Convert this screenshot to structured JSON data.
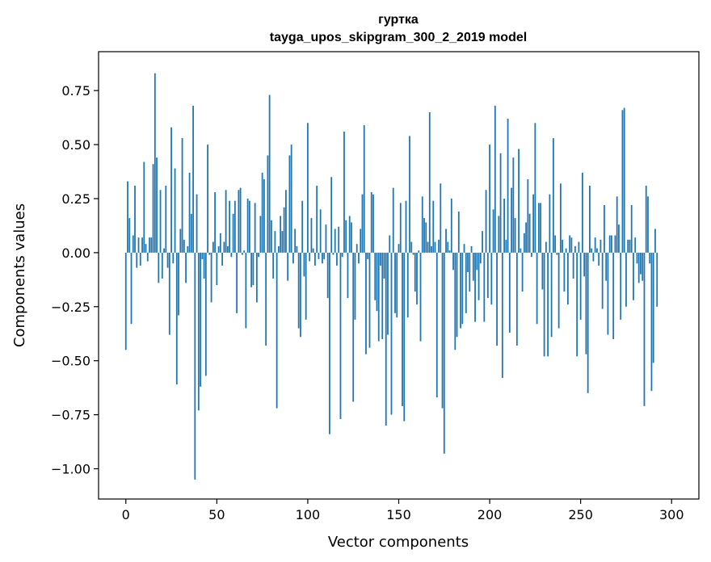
{
  "chart_data": {
    "type": "bar",
    "title": [
      "гуртка",
      "tayga_upos_skipgram_300_2_2019 model"
    ],
    "xlabel": "Vector components",
    "ylabel": "Components values",
    "xlim": [
      -15,
      315
    ],
    "ylim": [
      -1.14,
      0.93
    ],
    "xticks": [
      0,
      50,
      100,
      150,
      200,
      250,
      300
    ],
    "xtick_labels": [
      "0",
      "50",
      "100",
      "150",
      "200",
      "250",
      "300"
    ],
    "yticks": [
      -1.0,
      -0.75,
      -0.5,
      -0.25,
      0.0,
      0.25,
      0.5,
      0.75
    ],
    "ytick_labels": [
      "−1.00",
      "−0.75",
      "−0.50",
      "−0.25",
      "0.00",
      "0.25",
      "0.50",
      "0.75"
    ],
    "grid": false,
    "bar_color": "#1f77b4",
    "values": [
      -0.45,
      0.33,
      0.16,
      -0.33,
      0.08,
      0.31,
      -0.07,
      0.07,
      -0.06,
      0.07,
      0.42,
      0.04,
      -0.04,
      0.07,
      0.07,
      0.41,
      0.83,
      0.44,
      -0.14,
      0.29,
      -0.12,
      0.02,
      0.31,
      -0.07,
      -0.38,
      0.58,
      -0.05,
      0.39,
      -0.61,
      -0.29,
      0.11,
      0.53,
      0.06,
      -0.14,
      0.03,
      0.37,
      0.18,
      0.68,
      -1.05,
      0.27,
      -0.73,
      -0.62,
      -0.03,
      -0.12,
      -0.57,
      0.5,
      -0.01,
      -0.23,
      0.05,
      0.28,
      -0.15,
      0.03,
      0.09,
      -0.06,
      0.05,
      0.29,
      0.03,
      0.24,
      -0.02,
      0.18,
      0.24,
      -0.28,
      0.29,
      0.3,
      -0.01,
      0.01,
      -0.35,
      0.25,
      0.24,
      -0.16,
      -0.15,
      0.23,
      -0.23,
      -0.02,
      0.17,
      0.37,
      0.34,
      -0.43,
      0.45,
      0.73,
      0.15,
      -0.12,
      0.1,
      -0.72,
      0.03,
      0.17,
      0.1,
      0.21,
      0.29,
      -0.13,
      0.45,
      0.5,
      -0.05,
      0.11,
      0.03,
      -0.35,
      -0.39,
      0.24,
      -0.11,
      -0.31,
      0.6,
      -0.04,
      0.16,
      0.02,
      -0.06,
      0.31,
      -0.03,
      0.2,
      -0.05,
      -0.03,
      0.13,
      -0.21,
      -0.84,
      0.35,
      -0.01,
      0.11,
      -0.06,
      0.12,
      -0.77,
      -0.02,
      0.56,
      0.15,
      -0.21,
      0.17,
      0.14,
      -0.69,
      -0.31,
      0.04,
      -0.05,
      0.11,
      0.27,
      0.59,
      -0.47,
      -0.03,
      -0.44,
      0.28,
      0.27,
      -0.22,
      -0.27,
      -0.41,
      -0.06,
      -0.4,
      -0.12,
      -0.8,
      -0.38,
      0.08,
      -0.75,
      0.3,
      -0.28,
      -0.3,
      0.04,
      0.23,
      -0.71,
      -0.78,
      0.24,
      -0.3,
      0.54,
      0.05,
      -0.01,
      -0.18,
      -0.24,
      0.01,
      -0.41,
      0.26,
      0.16,
      0.14,
      0.05,
      0.65,
      0.03,
      0.24,
      0.05,
      -0.67,
      0.06,
      0.32,
      -0.72,
      -0.93,
      0.11,
      0.05,
      0.01,
      0.25,
      -0.08,
      -0.45,
      -0.39,
      0.19,
      -0.35,
      -0.33,
      0.04,
      -0.28,
      -0.09,
      -0.18,
      0.03,
      -0.13,
      -0.32,
      -0.08,
      -0.22,
      -0.05,
      0.1,
      -0.32,
      0.29,
      -0.21,
      0.5,
      -0.24,
      0.2,
      0.68,
      -0.43,
      0.17,
      0.46,
      -0.58,
      0.25,
      0.06,
      0.62,
      -0.37,
      0.3,
      0.44,
      0.16,
      -0.43,
      0.48,
      0.02,
      -0.18,
      0.09,
      0.14,
      0.34,
      0.18,
      -0.02,
      0.27,
      0.6,
      -0.33,
      0.23,
      0.23,
      -0.17,
      -0.48,
      0.05,
      -0.48,
      0.27,
      -0.39,
      0.53,
      0.08,
      -0.01,
      -0.35,
      0.32,
      0.06,
      -0.18,
      0.02,
      -0.24,
      0.08,
      0.07,
      -0.12,
      0.03,
      -0.48,
      0.05,
      -0.31,
      0.37,
      -0.11,
      -0.47,
      -0.65,
      0.31,
      0.02,
      -0.04,
      0.07,
      0.02,
      -0.06,
      0.06,
      -0.26,
      0.22,
      -0.13,
      -0.38,
      0.08,
      0.08,
      -0.4,
      0.08,
      0.26,
      0.13,
      -0.31,
      0.66,
      0.67,
      -0.25,
      0.06,
      0.06,
      0.22,
      -0.22,
      0.07,
      -0.05,
      -0.14,
      -0.1,
      -0.13,
      -0.71,
      0.31,
      0.26,
      -0.05,
      -0.64,
      -0.51,
      0.11,
      -0.25
    ]
  }
}
